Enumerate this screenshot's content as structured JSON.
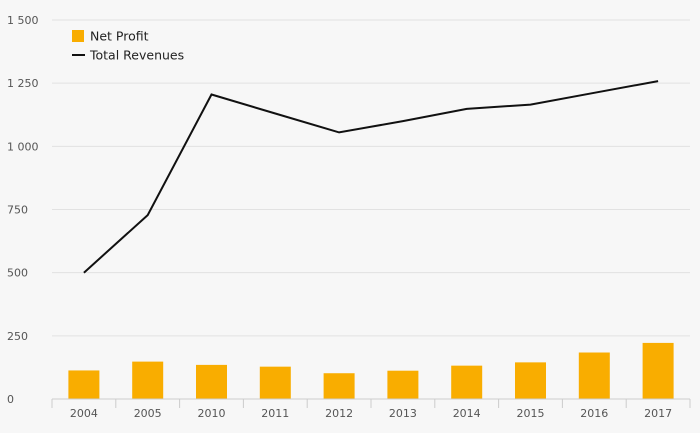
{
  "chart_data": {
    "type": "bar+line",
    "categories": [
      "2004",
      "2005",
      "2010",
      "2011",
      "2012",
      "2013",
      "2014",
      "2015",
      "2016",
      "2017"
    ],
    "series": [
      {
        "name": "Net Profit",
        "type": "bar",
        "color": "#f9ad00",
        "values": [
          113,
          148,
          135,
          128,
          102,
          112,
          132,
          145,
          184,
          222
        ]
      },
      {
        "name": "Total Revenues",
        "type": "line",
        "color": "#111111",
        "values": [
          500,
          728,
          1205,
          1130,
          1055,
          1100,
          1148,
          1165,
          1212,
          1258
        ]
      }
    ],
    "y_ticks": [
      {
        "value": 0,
        "label": "0"
      },
      {
        "value": 250,
        "label": "250"
      },
      {
        "value": 500,
        "label": "500"
      },
      {
        "value": 750,
        "label": "750"
      },
      {
        "value": 1000,
        "label": "1 000"
      },
      {
        "value": 1250,
        "label": "1 250"
      },
      {
        "value": 1500,
        "label": "1 500"
      }
    ],
    "ylim": [
      0,
      1500
    ],
    "grid": true,
    "legend_position": "top-left",
    "background_color": "#f7f7f7",
    "grid_color": "#e2e2e2",
    "axis_color": "#cccccc"
  }
}
